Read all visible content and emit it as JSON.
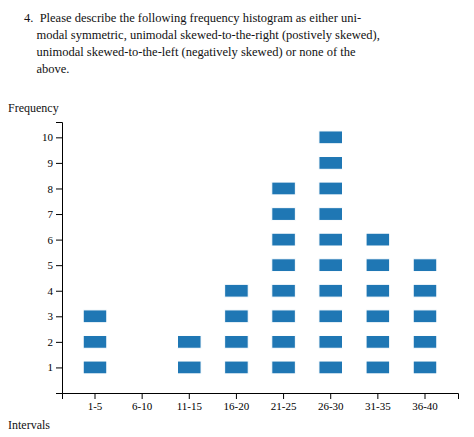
{
  "chart_data": {
    "type": "pictogram",
    "title": "4.  Please describe the following frequency histogram as either uni-\n    modal symmetric, unimodal skewed-to-the-right (postively skewed),\n    unimodal skewed-to-the-left (negatively skewed) or none of the\n    above.",
    "y_label": "Frequency",
    "x_label": "Intervals",
    "categories": [
      "1-5",
      "6-10",
      "11-15",
      "16-20",
      "21-25",
      "26-30",
      "31-35",
      "36-40"
    ],
    "values": [
      3,
      0,
      2,
      4,
      8,
      10,
      6,
      5
    ],
    "ylim": [
      0,
      10.6
    ],
    "yticks": [
      1,
      2,
      3,
      4,
      5,
      6,
      7,
      8,
      9,
      10
    ],
    "grid": false
  }
}
